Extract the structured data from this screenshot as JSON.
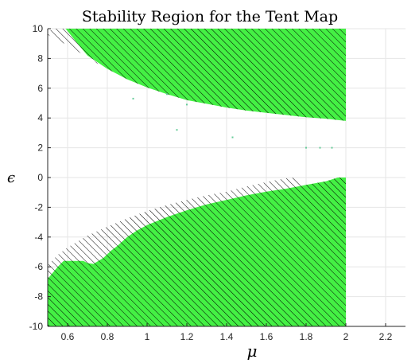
{
  "chart_data": {
    "type": "area",
    "title": "Stability Region for the Tent Map",
    "xlabel": "μ",
    "ylabel": "ϵ",
    "xlim": [
      0.5,
      2.3
    ],
    "ylim": [
      -10,
      10
    ],
    "x_ticks": [
      0.6,
      0.8,
      1,
      1.2,
      1.4,
      1.6,
      1.8,
      2,
      2.2
    ],
    "y_ticks": [
      -10,
      -8,
      -6,
      -4,
      -2,
      0,
      2,
      4,
      6,
      8,
      10
    ],
    "grid": true,
    "fill_color": "#44f044",
    "hatch_color": "#000000",
    "regions": [
      {
        "name": "upper-green",
        "fill": true,
        "hatch": true,
        "points": [
          [
            0.59,
            10
          ],
          [
            0.65,
            9.0
          ],
          [
            0.7,
            8.2
          ],
          [
            0.8,
            7.3
          ],
          [
            0.9,
            6.6
          ],
          [
            1.0,
            6.05
          ],
          [
            1.1,
            5.6
          ],
          [
            1.2,
            5.2
          ],
          [
            1.3,
            4.95
          ],
          [
            1.4,
            4.7
          ],
          [
            1.5,
            4.5
          ],
          [
            1.6,
            4.35
          ],
          [
            1.7,
            4.2
          ],
          [
            1.8,
            4.05
          ],
          [
            1.9,
            3.95
          ],
          [
            2.0,
            3.8
          ],
          [
            2.0,
            10
          ]
        ]
      },
      {
        "name": "upper-hatch",
        "fill": false,
        "hatch": true,
        "points": [
          [
            0.5,
            9.6
          ],
          [
            0.52,
            10
          ],
          [
            0.59,
            10
          ],
          [
            0.65,
            9.0
          ],
          [
            0.7,
            8.2
          ],
          [
            0.75,
            7.7
          ],
          [
            0.8,
            7.3
          ],
          [
            0.73,
            7.8
          ],
          [
            0.66,
            8.4
          ],
          [
            0.6,
            8.9
          ],
          [
            0.55,
            9.2
          ]
        ]
      },
      {
        "name": "lower-green",
        "fill": true,
        "hatch": true,
        "points": [
          [
            0.5,
            -10
          ],
          [
            0.5,
            -6.8
          ],
          [
            0.55,
            -6.0
          ],
          [
            0.58,
            -5.6
          ],
          [
            0.65,
            -5.6
          ],
          [
            0.68,
            -5.6
          ],
          [
            0.7,
            -5.75
          ],
          [
            0.73,
            -5.8
          ],
          [
            0.78,
            -5.4
          ],
          [
            0.82,
            -4.9
          ],
          [
            0.85,
            -4.6
          ],
          [
            0.9,
            -4.0
          ],
          [
            0.95,
            -3.55
          ],
          [
            1.0,
            -3.2
          ],
          [
            1.1,
            -2.65
          ],
          [
            1.2,
            -2.2
          ],
          [
            1.3,
            -1.8
          ],
          [
            1.4,
            -1.5
          ],
          [
            1.5,
            -1.2
          ],
          [
            1.6,
            -0.95
          ],
          [
            1.7,
            -0.75
          ],
          [
            1.8,
            -0.5
          ],
          [
            1.9,
            -0.25
          ],
          [
            1.96,
            0
          ],
          [
            2.0,
            0
          ],
          [
            2.0,
            -10
          ]
        ]
      },
      {
        "name": "lower-hatch",
        "fill": false,
        "hatch": true,
        "points": [
          [
            0.5,
            -6.8
          ],
          [
            0.5,
            -5.9
          ],
          [
            0.55,
            -5.2
          ],
          [
            0.6,
            -4.7
          ],
          [
            0.65,
            -4.3
          ],
          [
            0.7,
            -3.9
          ],
          [
            0.8,
            -3.3
          ],
          [
            0.9,
            -2.75
          ],
          [
            1.0,
            -2.25
          ],
          [
            1.1,
            -1.85
          ],
          [
            1.2,
            -1.5
          ],
          [
            1.3,
            -1.2
          ],
          [
            1.4,
            -0.95
          ],
          [
            1.5,
            -0.6
          ],
          [
            1.6,
            -0.3
          ],
          [
            1.7,
            -0.05
          ],
          [
            1.75,
            0
          ],
          [
            1.8,
            -0.5
          ],
          [
            1.7,
            -0.75
          ],
          [
            1.6,
            -0.95
          ],
          [
            1.5,
            -1.2
          ],
          [
            1.4,
            -1.5
          ],
          [
            1.3,
            -1.8
          ],
          [
            1.2,
            -2.2
          ],
          [
            1.1,
            -2.65
          ],
          [
            1.0,
            -3.2
          ],
          [
            0.95,
            -3.55
          ],
          [
            0.9,
            -4.0
          ],
          [
            0.85,
            -4.6
          ],
          [
            0.82,
            -4.9
          ],
          [
            0.78,
            -5.4
          ],
          [
            0.73,
            -5.8
          ],
          [
            0.7,
            -5.75
          ],
          [
            0.65,
            -5.6
          ],
          [
            0.58,
            -5.6
          ],
          [
            0.55,
            -6.0
          ]
        ]
      }
    ],
    "scatter_points": [
      [
        0.93,
        5.3
      ],
      [
        1.2,
        4.9
      ],
      [
        1.1,
        5.6
      ],
      [
        1.15,
        3.2
      ],
      [
        1.43,
        2.7
      ],
      [
        1.8,
        2.0
      ],
      [
        1.87,
        2.0
      ],
      [
        1.93,
        2.0
      ]
    ]
  }
}
